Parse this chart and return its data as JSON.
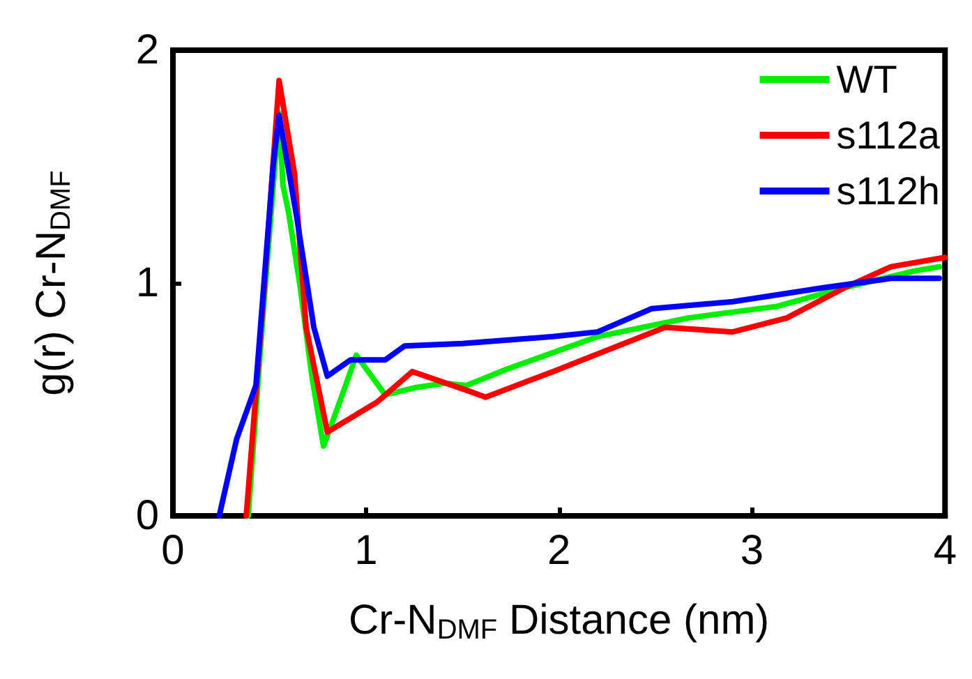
{
  "chart_data": {
    "type": "line",
    "xlabel": "Cr-N$_{DMF}$ Distance (nm)",
    "ylabel": "g(r) Cr-N$_{DMF}$",
    "xlim": [
      0,
      4
    ],
    "xticks": [
      0,
      1,
      2,
      3,
      4
    ],
    "ylim": [
      0,
      2
    ],
    "yticks": [
      0,
      1,
      2
    ],
    "grid": false,
    "legend": "top right",
    "marker": "none",
    "line_style": "solid",
    "series": [
      {
        "name": "WT",
        "color": "#00ee00",
        "x": [
          0.39,
          0.47,
          0.55,
          0.57,
          0.6,
          0.66,
          0.72,
          0.78,
          0.86,
          0.95,
          1.1,
          1.25,
          1.41,
          1.52,
          1.73,
          2.2,
          2.67,
          3.13,
          3.48,
          3.83,
          3.97
        ],
        "values": [
          0,
          0.9,
          1.73,
          1.42,
          1.3,
          0.98,
          0.6,
          0.3,
          0.48,
          0.69,
          0.52,
          0.55,
          0.57,
          0.56,
          0.63,
          0.77,
          0.85,
          0.9,
          0.98,
          1.05,
          1.07
        ]
      },
      {
        "name": "s112a",
        "color": "#ff0000",
        "x": [
          0.38,
          0.47,
          0.55,
          0.63,
          0.69,
          0.8,
          1.06,
          1.24,
          1.52,
          1.62,
          1.97,
          2.55,
          2.9,
          3.18,
          3.48,
          3.72,
          4.0
        ],
        "values": [
          0,
          0.95,
          1.87,
          1.47,
          0.81,
          0.36,
          0.49,
          0.62,
          0.54,
          0.51,
          0.62,
          0.81,
          0.79,
          0.85,
          0.98,
          1.07,
          1.11
        ]
      },
      {
        "name": "s112h",
        "color": "#0000ff",
        "x": [
          0.24,
          0.33,
          0.43,
          0.52,
          0.55,
          0.64,
          0.73,
          0.8,
          0.92,
          1.1,
          1.2,
          1.5,
          1.97,
          2.2,
          2.48,
          2.9,
          3.37,
          3.72,
          3.97
        ],
        "values": [
          0,
          0.33,
          0.56,
          1.51,
          1.72,
          1.29,
          0.81,
          0.6,
          0.67,
          0.67,
          0.73,
          0.74,
          0.77,
          0.79,
          0.89,
          0.92,
          0.98,
          1.02,
          1.02
        ]
      }
    ]
  }
}
